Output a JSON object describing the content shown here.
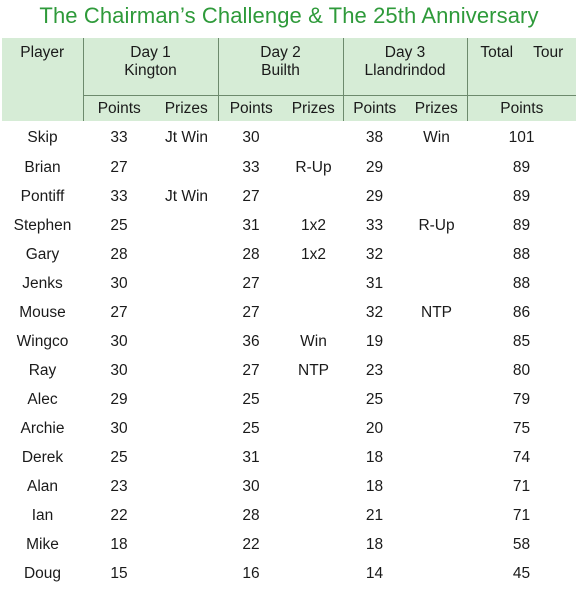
{
  "title": "The Chairman’s Challenge & The 25th Anniversary",
  "headers": {
    "player": "Player",
    "day1": {
      "line1": "Day 1",
      "line2": "Kington"
    },
    "day2": {
      "line1": "Day 2",
      "line2": "Builth"
    },
    "day3": {
      "line1": "Day 3",
      "line2": "Llandrindod"
    },
    "total": {
      "word1": "Total",
      "word2": "Tour"
    },
    "points": "Points",
    "prizes": "Prizes"
  },
  "rows": [
    {
      "player": "Skip",
      "d1p": "33",
      "d1z": "Jt Win",
      "d2p": "30",
      "d2z": "",
      "d3p": "38",
      "d3z": "Win",
      "total": "101"
    },
    {
      "player": "Brian",
      "d1p": "27",
      "d1z": "",
      "d2p": "33",
      "d2z": "R-Up",
      "d3p": "29",
      "d3z": "",
      "total": "89"
    },
    {
      "player": "Pontiff",
      "d1p": "33",
      "d1z": "Jt Win",
      "d2p": "27",
      "d2z": "",
      "d3p": "29",
      "d3z": "",
      "total": "89"
    },
    {
      "player": "Stephen",
      "d1p": "25",
      "d1z": "",
      "d2p": "31",
      "d2z": "1x2",
      "d3p": "33",
      "d3z": "R-Up",
      "total": "89"
    },
    {
      "player": "Gary",
      "d1p": "28",
      "d1z": "",
      "d2p": "28",
      "d2z": "1x2",
      "d3p": "32",
      "d3z": "",
      "total": "88"
    },
    {
      "player": "Jenks",
      "d1p": "30",
      "d1z": "",
      "d2p": "27",
      "d2z": "",
      "d3p": "31",
      "d3z": "",
      "total": "88"
    },
    {
      "player": "Mouse",
      "d1p": "27",
      "d1z": "",
      "d2p": "27",
      "d2z": "",
      "d3p": "32",
      "d3z": "NTP",
      "total": "86"
    },
    {
      "player": "Wingco",
      "d1p": "30",
      "d1z": "",
      "d2p": "36",
      "d2z": "Win",
      "d3p": "19",
      "d3z": "",
      "total": "85"
    },
    {
      "player": "Ray",
      "d1p": "30",
      "d1z": "",
      "d2p": "27",
      "d2z": "NTP",
      "d3p": "23",
      "d3z": "",
      "total": "80"
    },
    {
      "player": "Alec",
      "d1p": "29",
      "d1z": "",
      "d2p": "25",
      "d2z": "",
      "d3p": "25",
      "d3z": "",
      "total": "79"
    },
    {
      "player": "Archie",
      "d1p": "30",
      "d1z": "",
      "d2p": "25",
      "d2z": "",
      "d3p": "20",
      "d3z": "",
      "total": "75"
    },
    {
      "player": "Derek",
      "d1p": "25",
      "d1z": "",
      "d2p": "31",
      "d2z": "",
      "d3p": "18",
      "d3z": "",
      "total": "74"
    },
    {
      "player": "Alan",
      "d1p": "23",
      "d1z": "",
      "d2p": "30",
      "d2z": "",
      "d3p": "18",
      "d3z": "",
      "total": "71"
    },
    {
      "player": "Ian",
      "d1p": "22",
      "d1z": "",
      "d2p": "28",
      "d2z": "",
      "d3p": "21",
      "d3z": "",
      "total": "71"
    },
    {
      "player": "Mike",
      "d1p": "18",
      "d1z": "",
      "d2p": "22",
      "d2z": "",
      "d3p": "18",
      "d3z": "",
      "total": "58"
    },
    {
      "player": "Doug",
      "d1p": "15",
      "d1z": "",
      "d2p": "16",
      "d2z": "",
      "d3p": "14",
      "d3z": "",
      "total": "45"
    }
  ]
}
